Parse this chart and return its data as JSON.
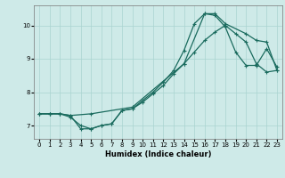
{
  "xlabel": "Humidex (Indice chaleur)",
  "bg_color": "#ceeae8",
  "grid_color": "#aad4d0",
  "line_color": "#1a6b5e",
  "xlim": [
    -0.5,
    23.5
  ],
  "ylim": [
    6.6,
    10.6
  ],
  "yticks": [
    7,
    8,
    9,
    10
  ],
  "xticks": [
    0,
    1,
    2,
    3,
    4,
    5,
    6,
    7,
    8,
    9,
    10,
    11,
    12,
    13,
    14,
    15,
    16,
    17,
    18,
    19,
    20,
    21,
    22,
    23
  ],
  "curve1_x": [
    0,
    1,
    2,
    3,
    4,
    5,
    6,
    7,
    8,
    9,
    10,
    11,
    12,
    13,
    14,
    15,
    16,
    17,
    18,
    19,
    20,
    21,
    22,
    23
  ],
  "curve1_y": [
    7.35,
    7.35,
    7.35,
    7.3,
    6.9,
    6.9,
    7.0,
    7.05,
    7.45,
    7.5,
    7.7,
    7.95,
    8.2,
    8.55,
    8.85,
    9.2,
    9.55,
    9.8,
    10.0,
    9.75,
    9.5,
    8.85,
    8.6,
    8.65
  ],
  "curve2_x": [
    0,
    1,
    2,
    3,
    4,
    5,
    6,
    7,
    8,
    9,
    10,
    11,
    12,
    13,
    14,
    15,
    16,
    17,
    18,
    19,
    20,
    21,
    22,
    23
  ],
  "curve2_y": [
    7.35,
    7.35,
    7.35,
    7.25,
    7.0,
    6.9,
    7.0,
    7.05,
    7.45,
    7.5,
    7.75,
    8.0,
    8.3,
    8.65,
    9.25,
    10.05,
    10.35,
    10.3,
    9.95,
    9.2,
    8.8,
    8.8,
    9.3,
    8.75
  ],
  "curve3_x": [
    0,
    1,
    2,
    3,
    5,
    9,
    14,
    16,
    17,
    18,
    20,
    21,
    22,
    23
  ],
  "curve3_y": [
    7.35,
    7.35,
    7.35,
    7.3,
    7.35,
    7.55,
    8.85,
    10.35,
    10.35,
    10.05,
    9.75,
    9.55,
    9.5,
    8.65
  ]
}
